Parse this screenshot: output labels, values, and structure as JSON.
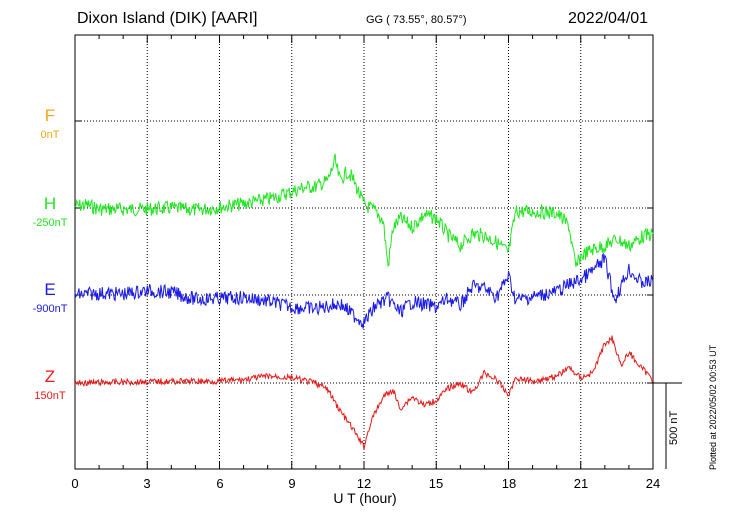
{
  "header": {
    "station": "Dixon Island (DIK)  [AARI]",
    "coords": "GG ( 73.55°,  80.57°)",
    "date": "2022/04/01"
  },
  "side": {
    "plotted_note": "Plotted at 2022/05/02 00:53 UT",
    "scale_label": "500 nT"
  },
  "chart_data": {
    "type": "line",
    "title": "Dixon Island (DIK)  [AARI]",
    "xlabel": "U T (hour)",
    "ylabel": "",
    "x_ticks": [
      "0",
      "3",
      "6",
      "9",
      "12",
      "15",
      "18",
      "21",
      "24"
    ],
    "xlim": [
      0,
      24
    ],
    "grid": true,
    "scale_bar_nT": 500,
    "series": [
      {
        "name": "F",
        "baseline_label": "0nT",
        "color": "#f2a81d",
        "points": []
      },
      {
        "name": "H",
        "baseline_label": "-250nT",
        "color": "#22e622",
        "points": [
          [
            0,
            10
          ],
          [
            0.5,
            18
          ],
          [
            1,
            -5
          ],
          [
            2,
            -8
          ],
          [
            3,
            -6
          ],
          [
            4,
            0
          ],
          [
            5,
            -12
          ],
          [
            6,
            5
          ],
          [
            7,
            25
          ],
          [
            8,
            50
          ],
          [
            8.5,
            70
          ],
          [
            9,
            95
          ],
          [
            9.5,
            120
          ],
          [
            10,
            125
          ],
          [
            10.5,
            160
          ],
          [
            10.8,
            275
          ],
          [
            11,
            160
          ],
          [
            11.3,
            210
          ],
          [
            11.5,
            180
          ],
          [
            12,
            20
          ],
          [
            12.5,
            -20
          ],
          [
            12.8,
            -80
          ],
          [
            13,
            -340
          ],
          [
            13.2,
            -120
          ],
          [
            13.5,
            -60
          ],
          [
            14,
            -110
          ],
          [
            14.5,
            -40
          ],
          [
            15,
            -60
          ],
          [
            15.5,
            -160
          ],
          [
            16,
            -220
          ],
          [
            16.5,
            -150
          ],
          [
            17,
            -160
          ],
          [
            17.5,
            -200
          ],
          [
            18,
            -260
          ],
          [
            18.3,
            -20
          ],
          [
            19,
            -20
          ],
          [
            20,
            -30
          ],
          [
            20.5,
            -100
          ],
          [
            20.8,
            -350
          ],
          [
            21,
            -280
          ],
          [
            21.5,
            -240
          ],
          [
            22,
            -220
          ],
          [
            22.5,
            -180
          ],
          [
            23,
            -220
          ],
          [
            23.5,
            -170
          ],
          [
            24,
            -150
          ]
        ]
      },
      {
        "name": "E",
        "baseline_label": "-900nT",
        "color": "#1a1ae6",
        "points": [
          [
            0,
            0
          ],
          [
            1,
            10
          ],
          [
            2,
            5
          ],
          [
            3,
            25
          ],
          [
            4,
            15
          ],
          [
            4.5,
            -5
          ],
          [
            5,
            -25
          ],
          [
            6,
            -20
          ],
          [
            7,
            -15
          ],
          [
            8,
            -35
          ],
          [
            9,
            -70
          ],
          [
            10,
            -80
          ],
          [
            11,
            -50
          ],
          [
            11.5,
            -110
          ],
          [
            12,
            -160
          ],
          [
            12.5,
            -60
          ],
          [
            13,
            -20
          ],
          [
            13.5,
            -100
          ],
          [
            14,
            -40
          ],
          [
            15,
            -70
          ],
          [
            15.5,
            -20
          ],
          [
            16,
            -60
          ],
          [
            16.5,
            50
          ],
          [
            17,
            40
          ],
          [
            17.5,
            -10
          ],
          [
            18,
            110
          ],
          [
            18.3,
            -30
          ],
          [
            19,
            -10
          ],
          [
            20,
            20
          ],
          [
            20.5,
            60
          ],
          [
            21,
            90
          ],
          [
            21.5,
            140
          ],
          [
            22,
            210
          ],
          [
            22.4,
            -30
          ],
          [
            22.8,
            90
          ],
          [
            23,
            150
          ],
          [
            23.5,
            70
          ],
          [
            24,
            80
          ]
        ]
      },
      {
        "name": "Z",
        "baseline_label": "150nT",
        "color": "#e61a1a",
        "points": [
          [
            0,
            0
          ],
          [
            2,
            5
          ],
          [
            4,
            10
          ],
          [
            6,
            10
          ],
          [
            7,
            20
          ],
          [
            8,
            40
          ],
          [
            9,
            30
          ],
          [
            10,
            0
          ],
          [
            10.5,
            -40
          ],
          [
            11,
            -160
          ],
          [
            11.5,
            -260
          ],
          [
            12,
            -370
          ],
          [
            12.3,
            -220
          ],
          [
            12.8,
            -80
          ],
          [
            13.2,
            -40
          ],
          [
            13.5,
            -150
          ],
          [
            14,
            -80
          ],
          [
            14.5,
            -130
          ],
          [
            15,
            -100
          ],
          [
            15.5,
            -30
          ],
          [
            16,
            0
          ],
          [
            16.5,
            -60
          ],
          [
            17,
            60
          ],
          [
            17.5,
            20
          ],
          [
            18,
            -70
          ],
          [
            18.3,
            30
          ],
          [
            19,
            10
          ],
          [
            20,
            40
          ],
          [
            20.5,
            90
          ],
          [
            21,
            30
          ],
          [
            21.5,
            60
          ],
          [
            22,
            230
          ],
          [
            22.3,
            260
          ],
          [
            22.7,
            100
          ],
          [
            23,
            180
          ],
          [
            23.5,
            90
          ],
          [
            24,
            20
          ]
        ]
      }
    ]
  }
}
